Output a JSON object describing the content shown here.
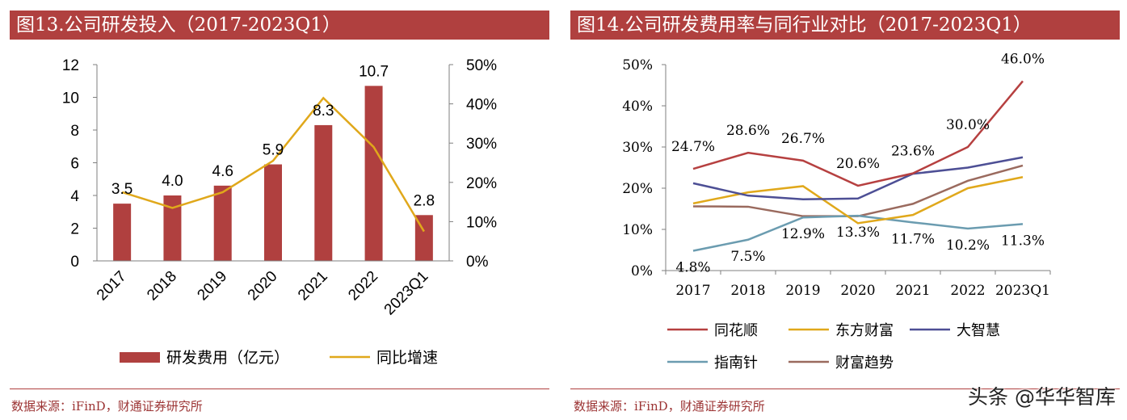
{
  "left": {
    "title": "图13.公司研发投入（2017-2023Q1）",
    "source": "数据来源：iFinD，财通证券研究所",
    "chart_data": {
      "type": "bar",
      "categories": [
        "2017",
        "2018",
        "2019",
        "2020",
        "2021",
        "2022",
        "2023Q1"
      ],
      "series": [
        {
          "name": "研发费用（亿元）",
          "type": "bar",
          "axis": "left",
          "color": "#b0403f",
          "values": [
            3.5,
            4.0,
            4.6,
            5.9,
            8.3,
            10.7,
            2.8
          ],
          "labels": [
            "3.5",
            "4.0",
            "4.6",
            "5.9",
            "8.3",
            "10.7",
            "2.8"
          ]
        },
        {
          "name": "同比增速",
          "type": "line",
          "axis": "right",
          "color": "#e0a81b",
          "values": [
            17.5,
            13.5,
            17.5,
            25.5,
            41.5,
            29.0,
            7.5
          ]
        }
      ],
      "y_left": {
        "min": 0,
        "max": 12,
        "ticks": [
          "0",
          "2",
          "4",
          "6",
          "8",
          "10",
          "12"
        ]
      },
      "y_right": {
        "min": 0,
        "max": 50,
        "ticks": [
          "0%",
          "10%",
          "20%",
          "30%",
          "40%",
          "50%"
        ]
      },
      "legend_position": "bottom"
    }
  },
  "right": {
    "title": "图14.公司研发费用率与同行业对比（2017-2023Q1）",
    "source": "数据来源：iFinD，财通证券研究所",
    "chart_data": {
      "type": "line",
      "categories": [
        "2017",
        "2018",
        "2019",
        "2020",
        "2021",
        "2022",
        "2023Q1"
      ],
      "y": {
        "min": 0,
        "max": 50,
        "ticks": [
          "0%",
          "10%",
          "20%",
          "30%",
          "40%",
          "50%"
        ]
      },
      "series": [
        {
          "name": "同花顺",
          "color": "#b64040",
          "values": [
            24.7,
            28.6,
            26.7,
            20.6,
            23.6,
            30.0,
            46.0
          ],
          "labels": [
            "24.7%",
            "28.6%",
            "26.7%",
            "20.6%",
            "23.6%",
            "30.0%",
            "46.0%"
          ]
        },
        {
          "name": "东方财富",
          "color": "#e0a81b",
          "values": [
            16.3,
            19.0,
            20.5,
            11.5,
            13.5,
            20.0,
            22.7
          ]
        },
        {
          "name": "大智慧",
          "color": "#4d4f95",
          "values": [
            21.2,
            18.2,
            17.3,
            17.5,
            23.5,
            25.0,
            27.5
          ]
        },
        {
          "name": "指南针",
          "color": "#6b9cb0",
          "values": [
            4.8,
            7.5,
            12.9,
            13.3,
            11.7,
            10.2,
            11.3
          ],
          "labels": [
            "4.8%",
            "7.5%",
            "12.9%",
            "13.3%",
            "11.7%",
            "10.2%",
            "11.3%"
          ]
        },
        {
          "name": "财富趋势",
          "color": "#9a6a5e",
          "values": [
            15.6,
            15.5,
            13.2,
            13.2,
            16.2,
            21.8,
            25.5
          ]
        }
      ],
      "legend_position": "bottom"
    }
  },
  "watermark": "头条 @华华智库"
}
